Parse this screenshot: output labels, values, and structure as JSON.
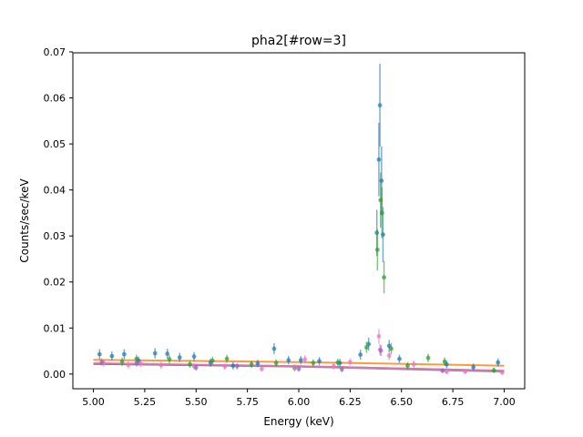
{
  "chart_data": {
    "type": "scatter",
    "title": "pha2[#row=3]",
    "xlabel": "Energy (keV)",
    "ylabel": "Counts/sec/keV",
    "xlim": [
      4.9,
      7.1
    ],
    "ylim": [
      -0.0032,
      0.0698
    ],
    "x_ticks": [
      5.0,
      5.25,
      5.5,
      5.75,
      6.0,
      6.25,
      6.5,
      6.75,
      7.0
    ],
    "x_tick_labels": [
      "5.00",
      "5.25",
      "5.50",
      "5.75",
      "6.00",
      "6.25",
      "6.50",
      "6.75",
      "7.00"
    ],
    "y_ticks": [
      0.0,
      0.01,
      0.02,
      0.03,
      0.04,
      0.05,
      0.06,
      0.07
    ],
    "y_tick_labels": [
      "0.00",
      "0.01",
      "0.02",
      "0.03",
      "0.04",
      "0.05",
      "0.06",
      "0.07"
    ],
    "grid": false,
    "series": [
      {
        "color": "#1f77b4",
        "points": [
          {
            "x": 5.03,
            "y": 0.0043,
            "err": 0.0011
          },
          {
            "x": 5.09,
            "y": 0.0039,
            "err": 0.001
          },
          {
            "x": 5.15,
            "y": 0.0043,
            "err": 0.0011
          },
          {
            "x": 5.22,
            "y": 0.0029,
            "err": 0.0009
          },
          {
            "x": 5.3,
            "y": 0.0045,
            "err": 0.0011
          },
          {
            "x": 5.36,
            "y": 0.0044,
            "err": 0.0011
          },
          {
            "x": 5.42,
            "y": 0.0036,
            "err": 0.001
          },
          {
            "x": 5.49,
            "y": 0.0038,
            "err": 0.001
          },
          {
            "x": 5.57,
            "y": 0.0025,
            "err": 0.0009
          },
          {
            "x": 5.68,
            "y": 0.0018,
            "err": 0.0008
          },
          {
            "x": 5.8,
            "y": 0.0023,
            "err": 0.0008
          },
          {
            "x": 5.88,
            "y": 0.0055,
            "err": 0.0012
          },
          {
            "x": 5.95,
            "y": 0.003,
            "err": 0.0009
          },
          {
            "x": 6.01,
            "y": 0.003,
            "err": 0.0009
          },
          {
            "x": 6.1,
            "y": 0.0028,
            "err": 0.0009
          },
          {
            "x": 6.2,
            "y": 0.0024,
            "err": 0.0009
          },
          {
            "x": 6.3,
            "y": 0.0042,
            "err": 0.0011
          },
          {
            "x": 6.34,
            "y": 0.0065,
            "err": 0.0014
          },
          {
            "x": 6.38,
            "y": 0.0307,
            "err": 0.005
          },
          {
            "x": 6.39,
            "y": 0.0466,
            "err": 0.008
          },
          {
            "x": 6.395,
            "y": 0.0584,
            "err": 0.009
          },
          {
            "x": 6.403,
            "y": 0.042,
            "err": 0.0075
          },
          {
            "x": 6.41,
            "y": 0.0303,
            "err": 0.006
          },
          {
            "x": 6.44,
            "y": 0.0061,
            "err": 0.0013
          },
          {
            "x": 6.49,
            "y": 0.0033,
            "err": 0.0009
          },
          {
            "x": 6.72,
            "y": 0.0021,
            "err": 0.0008
          },
          {
            "x": 6.85,
            "y": 0.0015,
            "err": 0.0008
          },
          {
            "x": 6.97,
            "y": 0.0025,
            "err": 0.0009
          }
        ]
      },
      {
        "color": "#2ca02c",
        "points": [
          {
            "x": 5.14,
            "y": 0.0027,
            "err": 0.0009
          },
          {
            "x": 5.21,
            "y": 0.0033,
            "err": 0.0009
          },
          {
            "x": 5.37,
            "y": 0.0032,
            "err": 0.0009
          },
          {
            "x": 5.47,
            "y": 0.0021,
            "err": 0.0008
          },
          {
            "x": 5.58,
            "y": 0.0029,
            "err": 0.0009
          },
          {
            "x": 5.65,
            "y": 0.0033,
            "err": 0.0009
          },
          {
            "x": 5.77,
            "y": 0.0021,
            "err": 0.0008
          },
          {
            "x": 5.89,
            "y": 0.0024,
            "err": 0.0008
          },
          {
            "x": 5.98,
            "y": 0.0013,
            "err": 0.0007
          },
          {
            "x": 6.07,
            "y": 0.0024,
            "err": 0.0008
          },
          {
            "x": 6.19,
            "y": 0.0025,
            "err": 0.0008
          },
          {
            "x": 6.33,
            "y": 0.0058,
            "err": 0.0012
          },
          {
            "x": 6.383,
            "y": 0.027,
            "err": 0.0045
          },
          {
            "x": 6.398,
            "y": 0.0378,
            "err": 0.006
          },
          {
            "x": 6.405,
            "y": 0.035,
            "err": 0.0055
          },
          {
            "x": 6.415,
            "y": 0.021,
            "err": 0.0035
          },
          {
            "x": 6.45,
            "y": 0.0055,
            "err": 0.0012
          },
          {
            "x": 6.53,
            "y": 0.0018,
            "err": 0.0008
          },
          {
            "x": 6.63,
            "y": 0.0035,
            "err": 0.0009
          },
          {
            "x": 6.71,
            "y": 0.0027,
            "err": 0.0009
          },
          {
            "x": 6.95,
            "y": 0.0008,
            "err": 0.0006
          }
        ]
      },
      {
        "color": "#e377c2",
        "points": [
          {
            "x": 5.05,
            "y": 0.0024,
            "err": 0.0008
          },
          {
            "x": 5.17,
            "y": 0.002,
            "err": 0.0008
          },
          {
            "x": 5.23,
            "y": 0.0023,
            "err": 0.0008
          },
          {
            "x": 5.33,
            "y": 0.0019,
            "err": 0.0008
          },
          {
            "x": 5.49,
            "y": 0.0017,
            "err": 0.0007
          },
          {
            "x": 5.64,
            "y": 0.0016,
            "err": 0.0007
          },
          {
            "x": 5.82,
            "y": 0.0011,
            "err": 0.0006
          },
          {
            "x": 5.98,
            "y": 0.0014,
            "err": 0.0007
          },
          {
            "x": 6.03,
            "y": 0.0032,
            "err": 0.0009
          },
          {
            "x": 6.17,
            "y": 0.0017,
            "err": 0.0007
          },
          {
            "x": 6.25,
            "y": 0.0026,
            "err": 0.0008
          },
          {
            "x": 6.39,
            "y": 0.0082,
            "err": 0.0016
          },
          {
            "x": 6.395,
            "y": 0.0053,
            "err": 0.0012
          },
          {
            "x": 6.44,
            "y": 0.004,
            "err": 0.001
          },
          {
            "x": 6.56,
            "y": 0.0021,
            "err": 0.0008
          },
          {
            "x": 6.72,
            "y": 0.0005,
            "err": 0.0005
          },
          {
            "x": 6.81,
            "y": 0.0005,
            "err": 0.0005
          },
          {
            "x": 6.99,
            "y": 0.0003,
            "err": 0.0004
          }
        ]
      },
      {
        "color": "#9467bd",
        "points": [
          {
            "x": 5.04,
            "y": 0.0026,
            "err": 0.0008
          },
          {
            "x": 5.21,
            "y": 0.0024,
            "err": 0.0008
          },
          {
            "x": 5.5,
            "y": 0.0014,
            "err": 0.0007
          },
          {
            "x": 5.7,
            "y": 0.0017,
            "err": 0.0007
          },
          {
            "x": 6.0,
            "y": 0.0011,
            "err": 0.0006
          },
          {
            "x": 6.21,
            "y": 0.001,
            "err": 0.0006
          },
          {
            "x": 6.4,
            "y": 0.0051,
            "err": 0.0012
          },
          {
            "x": 6.7,
            "y": 0.0007,
            "err": 0.0005
          }
        ]
      }
    ],
    "model_lines": [
      {
        "color": "#ff7f0e",
        "x": [
          5.0,
          6.0,
          7.0
        ],
        "y": [
          0.0031,
          0.0026,
          0.0018
        ]
      },
      {
        "color": "#8c564b",
        "x": [
          5.0,
          6.0,
          7.0
        ],
        "y": [
          0.0022,
          0.0017,
          0.0007
        ]
      },
      {
        "color": "#7f7f7f",
        "x": [
          5.0,
          6.0,
          7.0
        ],
        "y": [
          0.0022,
          0.0016,
          0.0005
        ]
      },
      {
        "color": "#e377c2",
        "x": [
          5.0,
          6.0,
          7.0
        ],
        "y": [
          0.0024,
          0.0017,
          0.0007
        ]
      }
    ]
  }
}
